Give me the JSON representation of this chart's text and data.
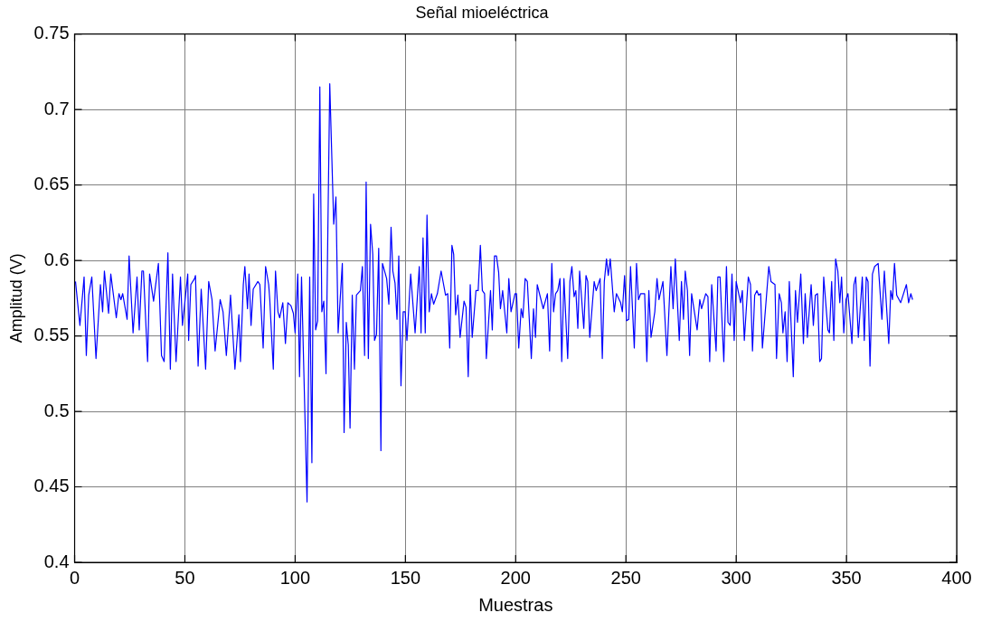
{
  "chart_data": {
    "type": "line",
    "title": "Señal mioeléctrica",
    "xlabel": "Muestras",
    "ylabel": "Amplitud (V)",
    "color": "#0000ff",
    "grid": true,
    "marker": "none",
    "line_style": "solid",
    "legend": false,
    "xlim": [
      0,
      400
    ],
    "xticks": [
      0,
      50,
      100,
      150,
      200,
      250,
      300,
      350,
      400
    ],
    "ylim": [
      0.4,
      0.75
    ],
    "yticks": [
      0.4,
      0.45,
      0.5,
      0.55,
      0.6,
      0.65,
      0.7,
      0.75
    ],
    "x": [
      0.4,
      2.4,
      4.3,
      5.3,
      6.4,
      7.8,
      9.7,
      11.7,
      12.7,
      13.5,
      15.4,
      16.4,
      18.9,
      20.1,
      21,
      21.8,
      23.8,
      24.7,
      26.5,
      28.3,
      29.3,
      30.5,
      31.2,
      33.1,
      34,
      35.8,
      38,
      39.4,
      40.6,
      42.3,
      43.4,
      44.4,
      46,
      48,
      48.9,
      51.3,
      51.7,
      52.7,
      54.4,
      54.8,
      56,
      57.4,
      59.4,
      60.8,
      62.3,
      63.7,
      66,
      67.3,
      68.8,
      70.7,
      72.7,
      74.5,
      75.2,
      76.5,
      77.2,
      78.4,
      79.1,
      80,
      81,
      83.1,
      84,
      85.5,
      86.6,
      88,
      88.5,
      90.1,
      91.1,
      92.2,
      93,
      94.4,
      95.6,
      96.7,
      98.1,
      99.2,
      100,
      101.2,
      102,
      102.9,
      105.4,
      106.6,
      107.6,
      108.4,
      109.3,
      110.2,
      111.2,
      112.1,
      113,
      114,
      115.7,
      117.5,
      118.5,
      119.5,
      121.4,
      122.2,
      123.2,
      124.1,
      124.9,
      125.9,
      126.9,
      127.8,
      129.6,
      130.5,
      131.5,
      132.2,
      133.2,
      134.2,
      135.2,
      136,
      136.9,
      137.9,
      138.9,
      139.6,
      141.5,
      142.5,
      143.5,
      144.3,
      145.3,
      146.2,
      147,
      148,
      149,
      149.9,
      150.7,
      152.4,
      154.4,
      156.3,
      157.1,
      158,
      159,
      159.8,
      160.8,
      161.8,
      162.8,
      164.5,
      166.2,
      168.2,
      169.2,
      170.1,
      171.1,
      171.9,
      172.8,
      173.8,
      174.8,
      176.6,
      177.5,
      178.5,
      179.4,
      180.3,
      182,
      183,
      184,
      184.9,
      185.9,
      186.7,
      188.6,
      189.4,
      190.4,
      191.3,
      192.3,
      193.1,
      194.1,
      196,
      196.9,
      197.9,
      199.7,
      200.4,
      201.4,
      202.5,
      203.3,
      204.3,
      205.3,
      207.1,
      208.1,
      209,
      209.8,
      212.5,
      214.4,
      215.4,
      216.4,
      217.2,
      218.1,
      219.1,
      220.1,
      220.9,
      221.9,
      223.6,
      224.6,
      225.5,
      226.5,
      227.3,
      228.2,
      229,
      230.9,
      231.9,
      232.7,
      233.6,
      235.6,
      236.5,
      238.3,
      239.3,
      240.2,
      241.2,
      242,
      242.9,
      244.7,
      245.7,
      247.6,
      248.4,
      249.4,
      250.3,
      251.3,
      252.1,
      253.8,
      254.8,
      255.7,
      256.7,
      258.5,
      259.5,
      260.4,
      261.4,
      263.1,
      264.1,
      265,
      266.8,
      268.6,
      270.4,
      271.4,
      272.4,
      274.2,
      275.2,
      276.1,
      276.9,
      277.9,
      278.9,
      279.8,
      282.3,
      283.5,
      284.3,
      286.2,
      287.2,
      288,
      288.9,
      290.9,
      291.7,
      292.7,
      294.4,
      295.6,
      296.3,
      297.3,
      298.1,
      299.1,
      300,
      302,
      302.8,
      303.7,
      305.5,
      306.5,
      307.4,
      308.4,
      309.4,
      310.2,
      311.1,
      311.9,
      314.8,
      315.8,
      317.6,
      318.3,
      319.5,
      320.5,
      321.2,
      322.2,
      323.1,
      324.1,
      325.9,
      326.9,
      327.8,
      329.3,
      330.5,
      331.3,
      332.3,
      334,
      335,
      335.9,
      336.9,
      337.9,
      338.7,
      339.7,
      341.6,
      342.3,
      343.3,
      344.3,
      345.1,
      346.1,
      347,
      347.8,
      348.8,
      349.8,
      350.7,
      352.5,
      353.4,
      354.2,
      355.4,
      357.2,
      358.1,
      359,
      359.8,
      360.7,
      361.8,
      362.8,
      364.4,
      366.1,
      367.2,
      369.2,
      370.1,
      370.9,
      371.8,
      372.8,
      374.6,
      377.2,
      378.2,
      379.2,
      380
    ],
    "values": [
      0.586,
      0.557,
      0.589,
      0.537,
      0.577,
      0.589,
      0.535,
      0.584,
      0.566,
      0.593,
      0.565,
      0.591,
      0.562,
      0.578,
      0.574,
      0.578,
      0.561,
      0.603,
      0.552,
      0.589,
      0.554,
      0.593,
      0.593,
      0.533,
      0.591,
      0.573,
      0.598,
      0.537,
      0.533,
      0.605,
      0.528,
      0.591,
      0.533,
      0.589,
      0.557,
      0.591,
      0.547,
      0.584,
      0.588,
      0.59,
      0.53,
      0.581,
      0.528,
      0.586,
      0.574,
      0.54,
      0.574,
      0.566,
      0.537,
      0.577,
      0.528,
      0.564,
      0.533,
      0.584,
      0.596,
      0.568,
      0.591,
      0.557,
      0.581,
      0.586,
      0.584,
      0.542,
      0.596,
      0.584,
      0.574,
      0.528,
      0.593,
      0.566,
      0.562,
      0.572,
      0.545,
      0.572,
      0.57,
      0.565,
      0.552,
      0.591,
      0.523,
      0.589,
      0.44,
      0.589,
      0.466,
      0.644,
      0.554,
      0.56,
      0.715,
      0.566,
      0.573,
      0.525,
      0.717,
      0.624,
      0.642,
      0.552,
      0.598,
      0.486,
      0.559,
      0.544,
      0.489,
      0.577,
      0.528,
      0.577,
      0.58,
      0.596,
      0.537,
      0.652,
      0.535,
      0.624,
      0.604,
      0.547,
      0.551,
      0.608,
      0.474,
      0.598,
      0.588,
      0.571,
      0.622,
      0.593,
      0.585,
      0.561,
      0.603,
      0.517,
      0.566,
      0.566,
      0.547,
      0.591,
      0.552,
      0.596,
      0.552,
      0.615,
      0.552,
      0.63,
      0.566,
      0.578,
      0.571,
      0.578,
      0.593,
      0.577,
      0.578,
      0.542,
      0.61,
      0.604,
      0.564,
      0.577,
      0.549,
      0.573,
      0.569,
      0.523,
      0.584,
      0.549,
      0.58,
      0.58,
      0.61,
      0.58,
      0.578,
      0.535,
      0.58,
      0.554,
      0.603,
      0.603,
      0.592,
      0.568,
      0.58,
      0.552,
      0.588,
      0.566,
      0.578,
      0.578,
      0.542,
      0.568,
      0.562,
      0.588,
      0.586,
      0.535,
      0.568,
      0.549,
      0.584,
      0.568,
      0.578,
      0.54,
      0.598,
      0.566,
      0.578,
      0.58,
      0.588,
      0.533,
      0.588,
      0.535,
      0.586,
      0.596,
      0.576,
      0.58,
      0.555,
      0.593,
      0.555,
      0.59,
      0.586,
      0.549,
      0.586,
      0.58,
      0.588,
      0.535,
      0.586,
      0.601,
      0.59,
      0.601,
      0.566,
      0.578,
      0.572,
      0.566,
      0.59,
      0.56,
      0.561,
      0.596,
      0.542,
      0.598,
      0.574,
      0.578,
      0.578,
      0.533,
      0.58,
      0.549,
      0.566,
      0.588,
      0.574,
      0.586,
      0.537,
      0.596,
      0.568,
      0.601,
      0.547,
      0.586,
      0.561,
      0.593,
      0.58,
      0.537,
      0.578,
      0.554,
      0.574,
      0.568,
      0.578,
      0.576,
      0.533,
      0.584,
      0.54,
      0.589,
      0.589,
      0.533,
      0.596,
      0.559,
      0.557,
      0.591,
      0.547,
      0.586,
      0.572,
      0.58,
      0.547,
      0.589,
      0.584,
      0.54,
      0.577,
      0.58,
      0.577,
      0.578,
      0.542,
      0.596,
      0.586,
      0.584,
      0.535,
      0.578,
      0.572,
      0.552,
      0.566,
      0.533,
      0.586,
      0.523,
      0.58,
      0.559,
      0.591,
      0.545,
      0.578,
      0.549,
      0.584,
      0.557,
      0.577,
      0.578,
      0.533,
      0.535,
      0.589,
      0.554,
      0.552,
      0.586,
      0.547,
      0.601,
      0.593,
      0.572,
      0.589,
      0.552,
      0.574,
      0.578,
      0.545,
      0.584,
      0.589,
      0.549,
      0.589,
      0.547,
      0.589,
      0.586,
      0.53,
      0.591,
      0.596,
      0.598,
      0.561,
      0.593,
      0.545,
      0.58,
      0.574,
      0.598,
      0.577,
      0.572,
      0.584,
      0.572,
      0.578,
      0.574
    ]
  }
}
